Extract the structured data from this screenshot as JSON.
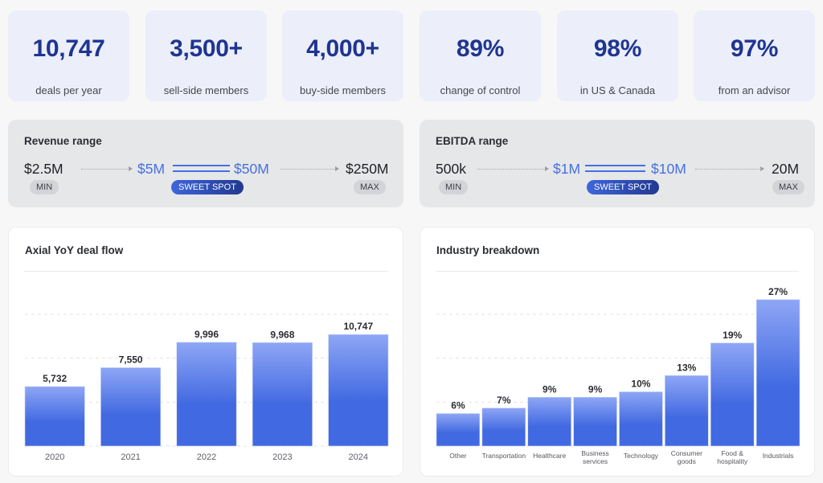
{
  "stats": [
    {
      "value": "10,747",
      "label": "deals per year"
    },
    {
      "value": "3,500+",
      "label": "sell-side members"
    },
    {
      "value": "4,000+",
      "label": "buy-side members"
    },
    {
      "value": "89%",
      "label": "change of control"
    },
    {
      "value": "98%",
      "label": "in US & Canada"
    },
    {
      "value": "97%",
      "label": "from an advisor"
    }
  ],
  "ranges": {
    "revenue": {
      "title": "Revenue range",
      "min": "$2.5M",
      "sweet_low": "$5M",
      "sweet_high": "$50M",
      "max": "$250M",
      "min_label": "MIN",
      "sweet_label": "SWEET SPOT",
      "max_label": "MAX"
    },
    "ebitda": {
      "title": "EBITDA range",
      "min": "500k",
      "sweet_low": "$1M",
      "sweet_high": "$10M",
      "max": "20M",
      "min_label": "MIN",
      "sweet_label": "SWEET SPOT",
      "max_label": "MAX"
    }
  },
  "colors": {
    "stat_value": "#1e3591",
    "accent_blue": "#4670e0",
    "bar_top": "#8ea6f5",
    "bar_bottom": "#4169e1",
    "sweet_spot_start": "#3e66dc",
    "sweet_spot_end": "#21388f"
  },
  "chart_data": [
    {
      "type": "bar",
      "title": "Axial YoY deal flow",
      "categories": [
        "2020",
        "2021",
        "2022",
        "2023",
        "2024"
      ],
      "values": [
        5732,
        7550,
        9996,
        9968,
        10747
      ],
      "value_labels": [
        "5,732",
        "7,550",
        "9,996",
        "9,968",
        "10,747"
      ],
      "xlabel": "",
      "ylabel": "",
      "ylim": [
        0,
        12700
      ],
      "grid": true,
      "gridline_count": 3,
      "legend": "none"
    },
    {
      "type": "bar",
      "title": "Industry breakdown",
      "categories": [
        [
          "Other"
        ],
        [
          "Transportation"
        ],
        [
          "Healthcare"
        ],
        [
          "Business",
          "services"
        ],
        [
          "Technology"
        ],
        [
          "Consumer",
          "goods"
        ],
        [
          "Food &",
          "hospitality"
        ],
        [
          "Industrials"
        ]
      ],
      "values": [
        6,
        7,
        9,
        9,
        10,
        13,
        19,
        27
      ],
      "value_labels": [
        "6%",
        "7%",
        "9%",
        "9%",
        "10%",
        "13%",
        "19%",
        "27%"
      ],
      "xlabel": "",
      "ylabel": "",
      "ylim": [
        0,
        24.3
      ],
      "grid": true,
      "gridline_count": 3,
      "legend": "none"
    }
  ]
}
